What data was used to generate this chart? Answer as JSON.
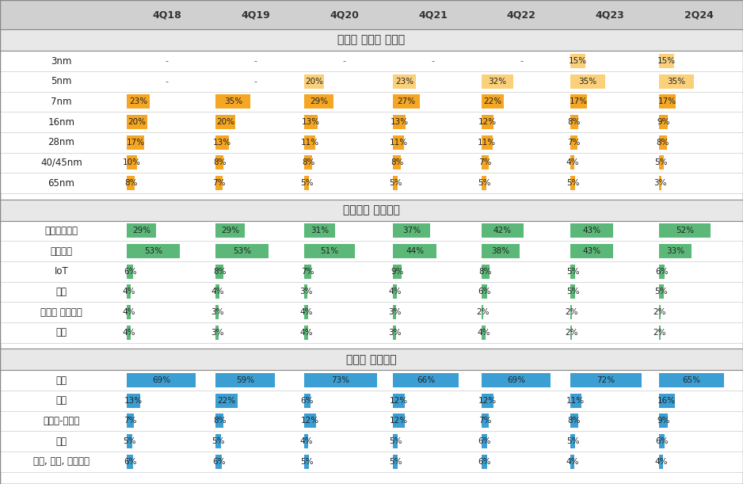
{
  "columns": [
    "4Q18",
    "4Q19",
    "4Q20",
    "4Q21",
    "4Q22",
    "4Q23",
    "2Q24"
  ],
  "section1_title": "웨이퍼 기술별 매출액",
  "section2_title": "플랫폼별 순매출액",
  "section3_title": "지역별 순매출액",
  "section1_rows": [
    {
      "label": "3nm",
      "values": [
        null,
        null,
        null,
        null,
        null,
        15,
        15
      ]
    },
    {
      "label": "5nm",
      "values": [
        null,
        null,
        20,
        23,
        32,
        35,
        35
      ]
    },
    {
      "label": "7nm",
      "values": [
        23,
        35,
        29,
        27,
        22,
        17,
        17
      ]
    },
    {
      "label": "16nm",
      "values": [
        20,
        20,
        13,
        13,
        12,
        8,
        9
      ]
    },
    {
      "label": "28nm",
      "values": [
        17,
        13,
        11,
        11,
        11,
        7,
        8
      ]
    },
    {
      "label": "40/45nm",
      "values": [
        10,
        8,
        8,
        8,
        7,
        4,
        5
      ]
    },
    {
      "label": "65nm",
      "values": [
        8,
        7,
        5,
        5,
        5,
        5,
        3
      ]
    }
  ],
  "section2_rows": [
    {
      "label": "고성능컴퓨팅",
      "values": [
        29,
        29,
        31,
        37,
        42,
        43,
        52
      ]
    },
    {
      "label": "스마트폰",
      "values": [
        53,
        53,
        51,
        44,
        38,
        43,
        33
      ]
    },
    {
      "label": "IoT",
      "values": [
        6,
        8,
        7,
        9,
        8,
        5,
        6
      ]
    },
    {
      "label": "차량",
      "values": [
        4,
        4,
        3,
        4,
        6,
        5,
        5
      ]
    },
    {
      "label": "디지털 가전제품",
      "values": [
        4,
        3,
        4,
        3,
        2,
        2,
        2
      ]
    },
    {
      "label": "기타",
      "values": [
        4,
        3,
        4,
        3,
        4,
        2,
        2
      ]
    }
  ],
  "section3_rows": [
    {
      "label": "북미",
      "values": [
        69,
        59,
        73,
        66,
        69,
        72,
        65
      ]
    },
    {
      "label": "중국",
      "values": [
        13,
        22,
        6,
        12,
        12,
        11,
        16
      ]
    },
    {
      "label": "아시아-태평양",
      "values": [
        7,
        8,
        12,
        12,
        7,
        8,
        9
      ]
    },
    {
      "label": "일본",
      "values": [
        5,
        5,
        4,
        5,
        6,
        5,
        6
      ]
    },
    {
      "label": "유럽, 중동, 아프리카",
      "values": [
        6,
        6,
        5,
        5,
        6,
        4,
        4
      ]
    }
  ],
  "color_orange": "#F5A623",
  "color_orange_light": "#FBBF24",
  "color_green": "#5BB878",
  "color_green_light": "#86EFAC",
  "color_blue": "#3B9FD4",
  "color_blue_light": "#7EC8E3",
  "bg_header": "#D0D0D0",
  "bg_section_header": "#E8E8E8",
  "bg_white": "#FFFFFF",
  "bar_max": 80,
  "text_color": "#222222",
  "border_color": "#AAAAAA"
}
